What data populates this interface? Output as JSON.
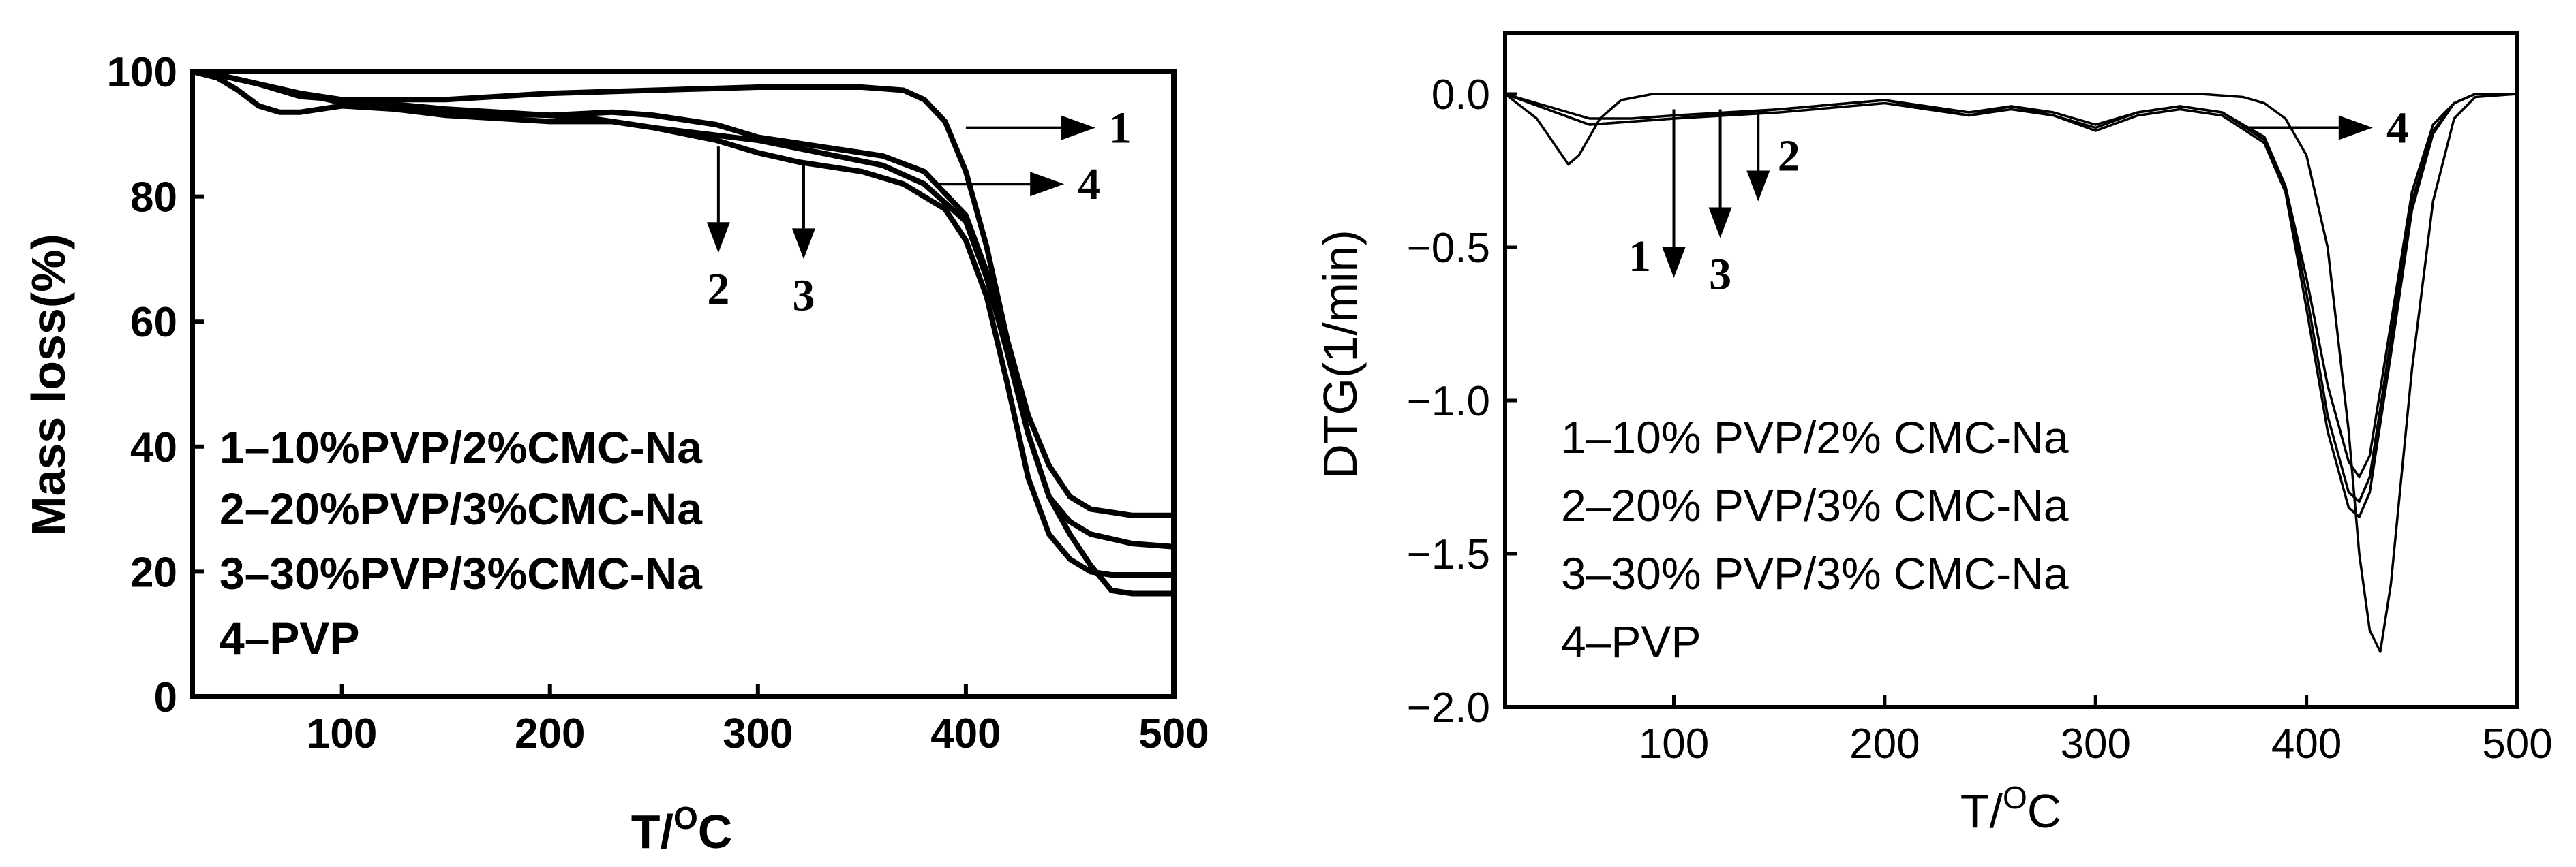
{
  "chart_data": [
    {
      "type": "line",
      "title": "",
      "xlabel": "T/",
      "xlabel_sup": "O",
      "xlabel_tail": "C",
      "ylabel": "Mass loss(%)",
      "xlim": [
        28,
        500
      ],
      "ylim": [
        0,
        100
      ],
      "xticks": [
        100,
        200,
        300,
        400,
        500
      ],
      "yticks": [
        0,
        20,
        40,
        60,
        80,
        100
      ],
      "legend": [
        "1–10%PVP/2%CMC-Na",
        "2–20%PVP/3%CMC-Na",
        "3–30%PVP/3%CMC-Na",
        "4–PVP"
      ],
      "legend_position": "bottom-left",
      "series": [
        {
          "name": "1",
          "x": [
            28,
            40,
            60,
            80,
            100,
            150,
            200,
            250,
            300,
            350,
            370,
            380,
            390,
            400,
            410,
            420,
            430,
            440,
            450,
            460,
            470,
            480,
            500
          ],
          "values": [
            100,
            99.5,
            98,
            96,
            95.5,
            95.5,
            96.5,
            97,
            97.5,
            97.5,
            97,
            95.5,
            92,
            84,
            72,
            57,
            45,
            37,
            32,
            30,
            29.5,
            29,
            29
          ]
        },
        {
          "name": "2",
          "x": [
            28,
            40,
            60,
            80,
            100,
            150,
            200,
            230,
            250,
            280,
            300,
            330,
            360,
            380,
            400,
            410,
            420,
            430,
            440,
            450,
            460,
            480,
            500
          ],
          "values": [
            100,
            99.5,
            98,
            96.5,
            95.5,
            94,
            93,
            93.5,
            93,
            91.5,
            89.5,
            88,
            86.5,
            84,
            77,
            68,
            55,
            42,
            32,
            28,
            26,
            24.5,
            24
          ]
        },
        {
          "name": "3",
          "x": [
            28,
            40,
            60,
            80,
            100,
            150,
            200,
            230,
            250,
            280,
            300,
            320,
            350,
            370,
            390,
            400,
            410,
            420,
            430,
            440,
            450,
            460,
            470,
            500
          ],
          "values": [
            100,
            99.5,
            98,
            96.5,
            95,
            93,
            92,
            92,
            91,
            89,
            87,
            85.5,
            84,
            82,
            78,
            73,
            64,
            50,
            35,
            26,
            22,
            20,
            19.5,
            19.5
          ]
        },
        {
          "name": "4",
          "x": [
            28,
            40,
            50,
            60,
            70,
            80,
            100,
            150,
            200,
            220,
            250,
            300,
            330,
            360,
            380,
            400,
            410,
            420,
            430,
            440,
            450,
            460,
            470,
            480,
            500
          ],
          "values": [
            100,
            99,
            97,
            94.5,
            93.5,
            93.5,
            94.5,
            93.5,
            93,
            92.5,
            91,
            89,
            87,
            85,
            82,
            76,
            67,
            55,
            42,
            32,
            26,
            21,
            17,
            16.5,
            16.5
          ]
        }
      ],
      "annotations": [
        {
          "label": "1",
          "arrow": "right",
          "at": [
            400,
            91
          ]
        },
        {
          "label": "4",
          "arrow": "right",
          "at": [
            385,
            82
          ]
        },
        {
          "label": "2",
          "arrow": "down",
          "from": [
            281,
            88
          ],
          "to": [
            281,
            71
          ]
        },
        {
          "label": "3",
          "arrow": "down",
          "from": [
            322,
            85
          ],
          "to": [
            322,
            70
          ]
        }
      ]
    },
    {
      "type": "line",
      "title": "",
      "xlabel": "T/",
      "xlabel_sup": "O",
      "xlabel_tail": "C",
      "ylabel": "DTG(1/min)",
      "xlim": [
        20,
        500
      ],
      "ylim": [
        -2.0,
        0.2
      ],
      "xticks": [
        100,
        200,
        300,
        400,
        500
      ],
      "yticks": [
        0.0,
        -0.5,
        -1.0,
        -1.5,
        -2.0
      ],
      "ytick_labels": [
        "0.0",
        "−0.5",
        "−1.0",
        "−1.5",
        "−2.0"
      ],
      "legend": [
        "1–10% PVP/2% CMC-Na",
        "2–20% PVP/3% CMC-Na",
        "3–30% PVP/3% CMC-Na",
        "4–PVP"
      ],
      "legend_position": "bottom-left",
      "series": [
        {
          "name": "1",
          "x": [
            20,
            40,
            60,
            80,
            100,
            150,
            200,
            240,
            260,
            280,
            300,
            320,
            340,
            360,
            380,
            390,
            400,
            410,
            420,
            425,
            430,
            440,
            450,
            460,
            470,
            480,
            500
          ],
          "values": [
            0,
            -0.05,
            -0.1,
            -0.09,
            -0.08,
            -0.05,
            -0.02,
            -0.07,
            -0.04,
            -0.07,
            -0.11,
            -0.06,
            -0.04,
            -0.06,
            -0.15,
            -0.3,
            -0.65,
            -1.05,
            -1.3,
            -1.33,
            -1.25,
            -0.8,
            -0.35,
            -0.12,
            -0.03,
            0,
            0
          ]
        },
        {
          "name": "2",
          "x": [
            20,
            40,
            60,
            80,
            100,
            150,
            200,
            240,
            260,
            280,
            300,
            320,
            340,
            360,
            380,
            390,
            400,
            410,
            420,
            425,
            430,
            440,
            450,
            460,
            470,
            480,
            500
          ],
          "values": [
            0,
            -0.04,
            -0.08,
            -0.08,
            -0.07,
            -0.05,
            -0.02,
            -0.06,
            -0.04,
            -0.06,
            -0.1,
            -0.06,
            -0.04,
            -0.06,
            -0.14,
            -0.3,
            -0.6,
            -0.95,
            -1.2,
            -1.25,
            -1.18,
            -0.75,
            -0.32,
            -0.1,
            -0.03,
            0,
            0
          ]
        },
        {
          "name": "3",
          "x": [
            20,
            40,
            60,
            80,
            100,
            150,
            200,
            240,
            260,
            280,
            300,
            320,
            340,
            360,
            380,
            390,
            400,
            410,
            420,
            425,
            430,
            440,
            450,
            460,
            470,
            480,
            500
          ],
          "values": [
            0,
            -0.05,
            -0.1,
            -0.09,
            -0.08,
            -0.06,
            -0.03,
            -0.07,
            -0.05,
            -0.07,
            -0.12,
            -0.07,
            -0.05,
            -0.07,
            -0.16,
            -0.32,
            -0.7,
            -1.1,
            -1.35,
            -1.38,
            -1.3,
            -0.85,
            -0.38,
            -0.13,
            -0.03,
            0,
            0
          ]
        },
        {
          "name": "4",
          "x": [
            20,
            35,
            45,
            50,
            55,
            65,
            75,
            90,
            120,
            200,
            300,
            350,
            370,
            380,
            390,
            400,
            410,
            420,
            425,
            430,
            435,
            440,
            450,
            460,
            470,
            480,
            500
          ],
          "values": [
            0,
            -0.08,
            -0.18,
            -0.23,
            -0.2,
            -0.08,
            -0.02,
            0,
            0,
            0,
            0,
            0,
            -0.01,
            -0.03,
            -0.08,
            -0.2,
            -0.5,
            -1.1,
            -1.5,
            -1.75,
            -1.82,
            -1.6,
            -0.9,
            -0.35,
            -0.08,
            -0.01,
            0
          ]
        }
      ],
      "annotations": [
        {
          "label": "4",
          "arrow": "right",
          "at": [
            370,
            -0.11
          ]
        },
        {
          "label": "1",
          "arrow": "down",
          "from": [
            100,
            -0.05
          ],
          "to": [
            100,
            -0.6
          ]
        },
        {
          "label": "3",
          "arrow": "down",
          "from": [
            122,
            -0.05
          ],
          "to": [
            122,
            -0.47
          ]
        },
        {
          "label": "2",
          "arrow": "down",
          "from": [
            140,
            -0.05
          ],
          "to": [
            140,
            -0.35
          ]
        }
      ]
    }
  ]
}
